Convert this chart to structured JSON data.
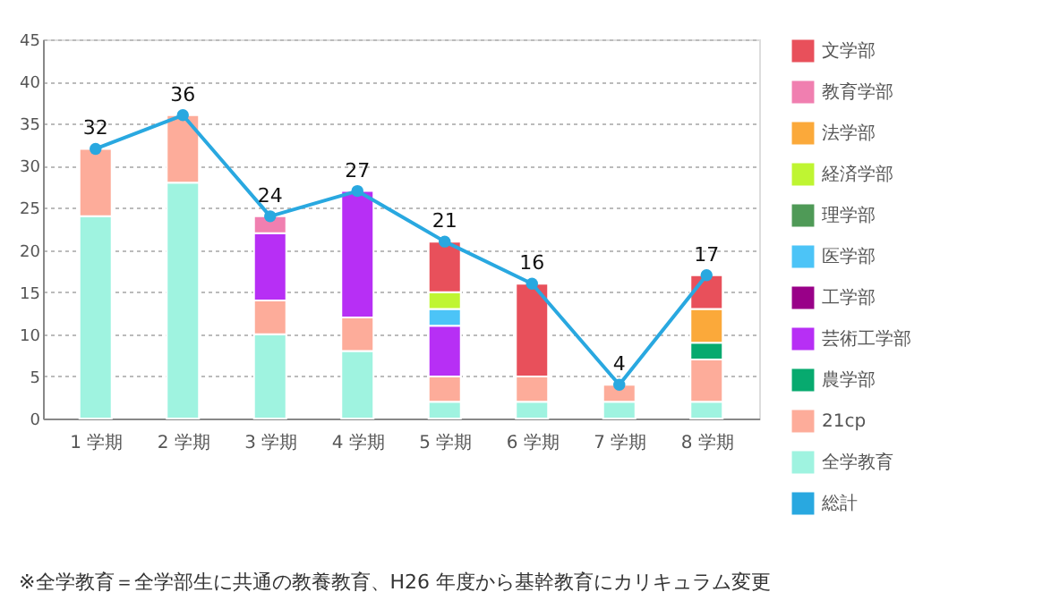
{
  "chart_data": {
    "type": "bar",
    "stacked": true,
    "categories": [
      "1 学期",
      "2 学期",
      "3 学期",
      "4 学期",
      "5 学期",
      "6 学期",
      "7 学期",
      "8 学期"
    ],
    "series": [
      {
        "name": "全学教育",
        "color": "#9ff3e0",
        "values": [
          24,
          28,
          10,
          8,
          2,
          2,
          2,
          2
        ]
      },
      {
        "name": "21cp",
        "color": "#fdac9a",
        "values": [
          8,
          8,
          4,
          4,
          3,
          3,
          2,
          5
        ]
      },
      {
        "name": "農学部",
        "color": "#07aa6f",
        "values": [
          null,
          null,
          null,
          null,
          null,
          null,
          null,
          2
        ]
      },
      {
        "name": "芸術工学部",
        "color": "#b72ff5",
        "values": [
          null,
          null,
          8,
          15,
          6,
          null,
          null,
          null
        ]
      },
      {
        "name": "工学部",
        "color": "#990088",
        "values": [
          null,
          null,
          null,
          null,
          null,
          null,
          null,
          null
        ]
      },
      {
        "name": "医学部",
        "color": "#4cc4f7",
        "values": [
          null,
          null,
          null,
          null,
          2,
          null,
          null,
          null
        ]
      },
      {
        "name": "理学部",
        "color": "#4f9a57",
        "values": [
          null,
          null,
          null,
          null,
          null,
          null,
          null,
          null
        ]
      },
      {
        "name": "経済学部",
        "color": "#bff532",
        "values": [
          null,
          null,
          null,
          null,
          2,
          null,
          null,
          null
        ]
      },
      {
        "name": "法学部",
        "color": "#fba93a",
        "values": [
          null,
          null,
          null,
          null,
          null,
          null,
          null,
          4
        ]
      },
      {
        "name": "教育学部",
        "color": "#f07fb0",
        "values": [
          null,
          null,
          2,
          null,
          null,
          null,
          null,
          null
        ]
      },
      {
        "name": "文学部",
        "color": "#e8505b",
        "values": [
          null,
          null,
          null,
          null,
          6,
          11,
          null,
          4
        ]
      },
      {
        "name": "総計",
        "type": "line",
        "color": "#29a8e0",
        "marker": "circle",
        "values": [
          32,
          36,
          24,
          27,
          21,
          16,
          4,
          17
        ]
      }
    ],
    "totals": [
      "32",
      "36",
      "24",
      "27",
      "21",
      "16",
      "4",
      "17"
    ],
    "ylim": [
      0,
      45
    ],
    "yticks": [
      0,
      5,
      10,
      15,
      20,
      25,
      30,
      35,
      40,
      45
    ],
    "grid": "y",
    "legend": "right",
    "annotations": [
      "※全学教育＝全学部生に共通の教養教育、H26 年度から基幹教育にカリキュラム変更"
    ]
  }
}
